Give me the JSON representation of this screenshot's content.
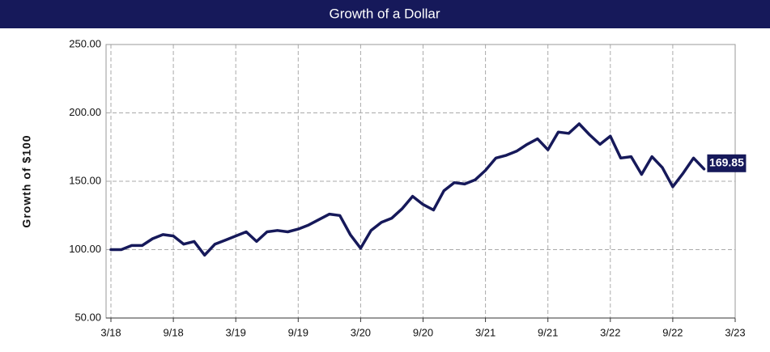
{
  "chart_data": {
    "type": "line",
    "title": "Growth of a Dollar",
    "y_label": "Growth of $100",
    "annotation": "169.85",
    "categories": [
      "3/18",
      null,
      null,
      null,
      null,
      null,
      "9/18",
      null,
      null,
      null,
      null,
      null,
      "3/19",
      null,
      null,
      null,
      null,
      null,
      "9/19",
      null,
      null,
      null,
      null,
      null,
      "3/20",
      null,
      null,
      null,
      null,
      null,
      "9/20",
      null,
      null,
      null,
      null,
      null,
      "3/21",
      null,
      null,
      null,
      null,
      null,
      "9/21",
      null,
      null,
      null,
      null,
      null,
      "3/22",
      null,
      null,
      null,
      null,
      null,
      "9/22",
      null,
      null,
      null,
      null,
      null,
      "3/23"
    ],
    "series": [
      {
        "name": "Growth of $100",
        "color": "#16195a",
        "values": [
          100,
          100,
          103,
          103,
          108,
          111,
          110,
          104,
          106,
          96,
          104,
          107,
          110,
          113,
          106,
          113,
          114,
          113,
          115,
          118,
          122,
          126,
          125,
          111,
          101,
          114,
          120,
          123,
          130,
          139,
          133,
          129,
          143,
          149,
          148,
          151,
          158,
          167,
          169,
          172,
          177,
          181,
          173,
          186,
          185,
          192,
          184,
          177,
          183,
          167,
          168,
          155,
          168,
          160,
          146,
          156,
          167,
          159,
          null,
          null,
          null
        ]
      }
    ],
    "ylim": [
      50,
      250
    ],
    "yticks": [
      {
        "value": 50,
        "label": "50.00"
      },
      {
        "value": 100,
        "label": "100.00"
      },
      {
        "value": 150,
        "label": "150.00"
      },
      {
        "value": 200,
        "label": "200.00"
      },
      {
        "value": 250,
        "label": "250.00"
      }
    ],
    "grid": true
  }
}
